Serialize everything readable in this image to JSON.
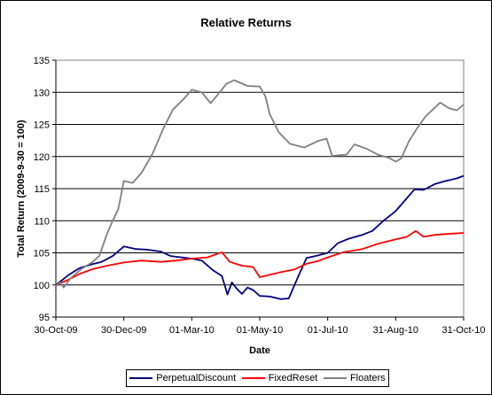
{
  "chart_data": {
    "type": "line",
    "title": "Relative Returns",
    "xlabel": "Date",
    "ylabel": "Total Return (2009-9-30 = 100)",
    "ylim": [
      95,
      135
    ],
    "yticks": [
      95,
      100,
      105,
      110,
      115,
      120,
      125,
      130,
      135
    ],
    "xlim": [
      "2009-10-30",
      "2010-10-31"
    ],
    "xticks": [
      {
        "date": "2009-10-30",
        "label": "30-Oct-09"
      },
      {
        "date": "2009-12-30",
        "label": "30-Dec-09"
      },
      {
        "date": "2010-03-01",
        "label": "01-Mar-10"
      },
      {
        "date": "2010-05-01",
        "label": "01-May-10"
      },
      {
        "date": "2010-07-01",
        "label": "01-Jul-10"
      },
      {
        "date": "2010-08-31",
        "label": "31-Aug-10"
      },
      {
        "date": "2010-10-31",
        "label": "31-Oct-10"
      }
    ],
    "grid": "horizontal",
    "legend_position": "bottom",
    "series": [
      {
        "name": "PerpetualDiscount",
        "color": "#000080",
        "points": [
          [
            "2009-10-30",
            100.0
          ],
          [
            "2009-11-10",
            101.5
          ],
          [
            "2009-11-20",
            102.6
          ],
          [
            "2009-12-01",
            103.2
          ],
          [
            "2009-12-10",
            103.6
          ],
          [
            "2009-12-20",
            104.5
          ],
          [
            "2009-12-30",
            106.0
          ],
          [
            "2010-01-10",
            105.6
          ],
          [
            "2010-01-20",
            105.5
          ],
          [
            "2010-02-01",
            105.2
          ],
          [
            "2010-02-10",
            104.5
          ],
          [
            "2010-02-20",
            104.3
          ],
          [
            "2010-03-01",
            104.1
          ],
          [
            "2010-03-10",
            103.8
          ],
          [
            "2010-03-20",
            102.3
          ],
          [
            "2010-03-28",
            101.4
          ],
          [
            "2010-04-02",
            98.5
          ],
          [
            "2010-04-06",
            100.4
          ],
          [
            "2010-04-10",
            99.5
          ],
          [
            "2010-04-15",
            98.6
          ],
          [
            "2010-04-20",
            99.6
          ],
          [
            "2010-04-25",
            99.2
          ],
          [
            "2010-05-01",
            98.3
          ],
          [
            "2010-05-10",
            98.2
          ],
          [
            "2010-05-20",
            97.8
          ],
          [
            "2010-05-27",
            97.9
          ],
          [
            "2010-06-05",
            101.5
          ],
          [
            "2010-06-12",
            104.2
          ],
          [
            "2010-06-20",
            104.5
          ],
          [
            "2010-07-01",
            105.0
          ],
          [
            "2010-07-10",
            106.5
          ],
          [
            "2010-07-20",
            107.2
          ],
          [
            "2010-08-01",
            107.8
          ],
          [
            "2010-08-10",
            108.4
          ],
          [
            "2010-08-20",
            110.0
          ],
          [
            "2010-08-31",
            111.5
          ],
          [
            "2010-09-10",
            113.5
          ],
          [
            "2010-09-17",
            114.9
          ],
          [
            "2010-09-25",
            114.8
          ],
          [
            "2010-10-05",
            115.7
          ],
          [
            "2010-10-15",
            116.2
          ],
          [
            "2010-10-25",
            116.6
          ],
          [
            "2010-10-31",
            117.0
          ]
        ]
      },
      {
        "name": "FixedReset",
        "color": "#ff0000",
        "points": [
          [
            "2009-10-30",
            100.0
          ],
          [
            "2009-11-10",
            100.8
          ],
          [
            "2009-11-20",
            101.7
          ],
          [
            "2009-12-01",
            102.4
          ],
          [
            "2009-12-15",
            103.0
          ],
          [
            "2009-12-30",
            103.5
          ],
          [
            "2010-01-15",
            103.8
          ],
          [
            "2010-02-01",
            103.6
          ],
          [
            "2010-02-15",
            103.8
          ],
          [
            "2010-03-01",
            104.1
          ],
          [
            "2010-03-15",
            104.3
          ],
          [
            "2010-03-28",
            105.1
          ],
          [
            "2010-04-04",
            103.6
          ],
          [
            "2010-04-15",
            103.0
          ],
          [
            "2010-04-25",
            102.8
          ],
          [
            "2010-05-01",
            101.2
          ],
          [
            "2010-05-10",
            101.6
          ],
          [
            "2010-05-20",
            102.0
          ],
          [
            "2010-06-01",
            102.4
          ],
          [
            "2010-06-12",
            103.3
          ],
          [
            "2010-06-22",
            103.7
          ],
          [
            "2010-07-01",
            104.3
          ],
          [
            "2010-07-15",
            105.1
          ],
          [
            "2010-08-01",
            105.6
          ],
          [
            "2010-08-15",
            106.4
          ],
          [
            "2010-08-31",
            107.1
          ],
          [
            "2010-09-10",
            107.5
          ],
          [
            "2010-09-18",
            108.4
          ],
          [
            "2010-09-25",
            107.5
          ],
          [
            "2010-10-05",
            107.8
          ],
          [
            "2010-10-20",
            108.0
          ],
          [
            "2010-10-31",
            108.1
          ]
        ]
      },
      {
        "name": "Floaters",
        "color": "#808080",
        "points": [
          [
            "2009-10-30",
            99.8
          ],
          [
            "2009-11-03",
            100.4
          ],
          [
            "2009-11-06",
            99.6
          ],
          [
            "2009-11-12",
            101.0
          ],
          [
            "2009-11-22",
            102.5
          ],
          [
            "2009-12-02",
            103.6
          ],
          [
            "2009-12-08",
            104.5
          ],
          [
            "2009-12-15",
            108.0
          ],
          [
            "2009-12-20",
            110.0
          ],
          [
            "2009-12-25",
            111.8
          ],
          [
            "2009-12-30",
            116.2
          ],
          [
            "2010-01-07",
            115.9
          ],
          [
            "2010-01-15",
            117.5
          ],
          [
            "2010-01-25",
            120.5
          ],
          [
            "2010-02-03",
            124.2
          ],
          [
            "2010-02-12",
            127.3
          ],
          [
            "2010-02-22",
            129.0
          ],
          [
            "2010-03-01",
            130.4
          ],
          [
            "2010-03-10",
            130.0
          ],
          [
            "2010-03-18",
            128.3
          ],
          [
            "2010-03-25",
            129.8
          ],
          [
            "2010-04-01",
            131.3
          ],
          [
            "2010-04-08",
            131.9
          ],
          [
            "2010-04-20",
            131.0
          ],
          [
            "2010-05-01",
            130.9
          ],
          [
            "2010-05-06",
            129.4
          ],
          [
            "2010-05-10",
            126.6
          ],
          [
            "2010-05-18",
            123.8
          ],
          [
            "2010-05-28",
            122.0
          ],
          [
            "2010-06-10",
            121.4
          ],
          [
            "2010-06-22",
            122.4
          ],
          [
            "2010-06-30",
            122.8
          ],
          [
            "2010-07-05",
            120.1
          ],
          [
            "2010-07-18",
            120.3
          ],
          [
            "2010-07-25",
            121.9
          ],
          [
            "2010-08-05",
            121.2
          ],
          [
            "2010-08-15",
            120.3
          ],
          [
            "2010-08-25",
            119.8
          ],
          [
            "2010-08-31",
            119.2
          ],
          [
            "2010-09-05",
            119.7
          ],
          [
            "2010-09-12",
            122.4
          ],
          [
            "2010-09-20",
            124.6
          ],
          [
            "2010-09-27",
            126.3
          ],
          [
            "2010-10-05",
            127.6
          ],
          [
            "2010-10-10",
            128.4
          ],
          [
            "2010-10-18",
            127.5
          ],
          [
            "2010-10-25",
            127.2
          ],
          [
            "2010-10-31",
            128.1
          ]
        ]
      }
    ]
  },
  "colors": {
    "plot_background": "#ffffff",
    "grid": "#000000"
  }
}
